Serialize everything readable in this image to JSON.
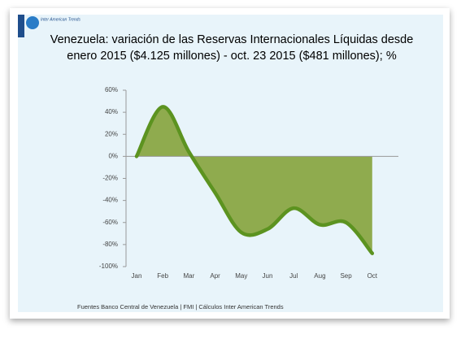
{
  "logo": {
    "text": "Inter American Trends"
  },
  "chart_data": {
    "type": "area",
    "title": [
      "Venezuela: variación de las  Reservas Internacionales Líquidas desde",
      "enero 2015 ($4.125 millones) - oct. 23 2015 ($481 millones); %"
    ],
    "categories": [
      "Jan",
      "Feb",
      "Mar",
      "Apr",
      "May",
      "Jun",
      "Jul",
      "Aug",
      "Sep",
      "Oct"
    ],
    "values": [
      0,
      45,
      4,
      -33,
      -69,
      -66,
      -47,
      -62,
      -60,
      -88
    ],
    "fill_color": "#8fab4e",
    "line_color": "#5c9320",
    "ylim": [
      -100,
      60
    ],
    "yticks": [
      {
        "value": -100,
        "label": "-100%"
      },
      {
        "value": -80,
        "label": "-80%"
      },
      {
        "value": -60,
        "label": "-60%"
      },
      {
        "value": -40,
        "label": "-40%"
      },
      {
        "value": -20,
        "label": "-20%"
      },
      {
        "value": 0,
        "label": "0%"
      },
      {
        "value": 20,
        "label": "20%"
      },
      {
        "value": 40,
        "label": "40%"
      },
      {
        "value": 60,
        "label": "60%"
      }
    ],
    "source": "Fuentes  Banco Central de Venezuela | FMI | Cálculos Inter American Trends"
  }
}
